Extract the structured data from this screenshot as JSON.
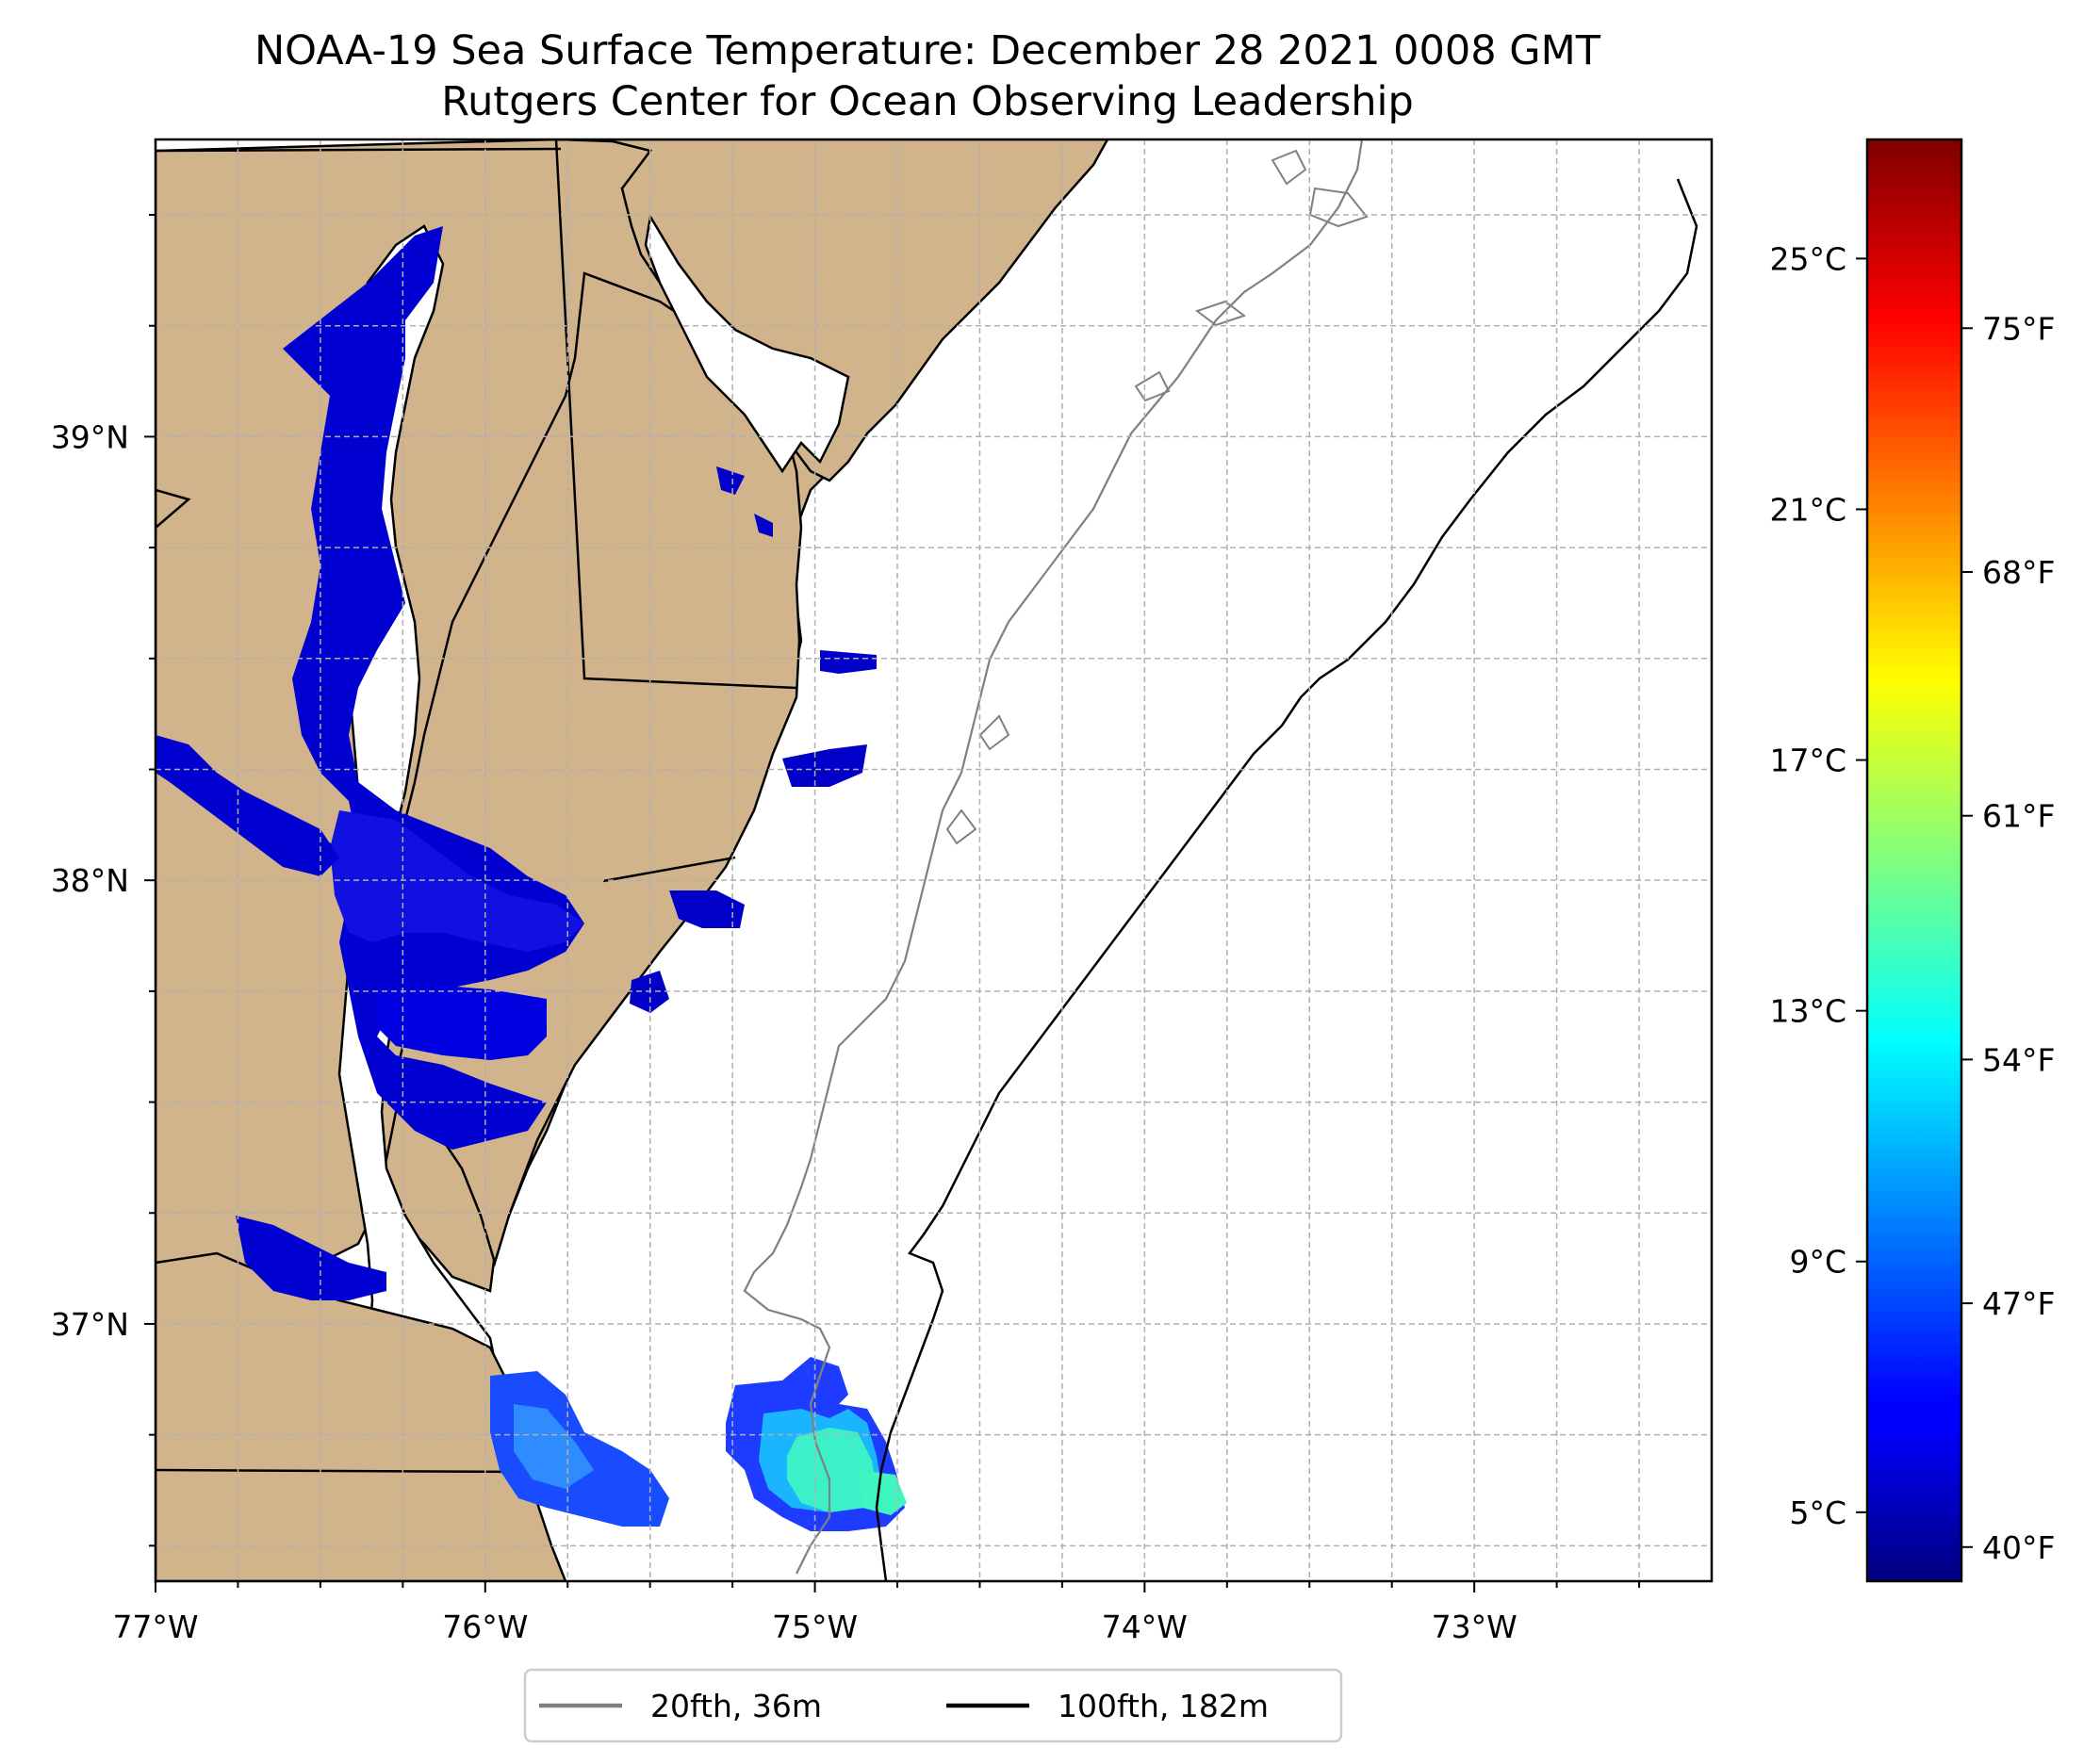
{
  "title": {
    "line1": "NOAA-19 Sea Surface Temperature: December 28 2021 0008 GMT",
    "line2": "Rutgers Center for Ocean Observing Leadership"
  },
  "map": {
    "lon_range": [
      -77.0,
      -72.28
    ],
    "lat_range": [
      36.42,
      39.67
    ],
    "lon_ticks": [
      {
        "value": -77,
        "label": "77°W"
      },
      {
        "value": -76,
        "label": "76°W"
      },
      {
        "value": -75,
        "label": "75°W"
      },
      {
        "value": -74,
        "label": "74°W"
      },
      {
        "value": -73,
        "label": "73°W"
      }
    ],
    "lat_ticks": [
      {
        "value": 37,
        "label": "37°N"
      },
      {
        "value": 38,
        "label": "38°N"
      },
      {
        "value": 39,
        "label": "39°N"
      }
    ],
    "gridlines": true,
    "land_color": "#d2b48c",
    "water_color": "#ffffff"
  },
  "colorbar": {
    "colormap": "jet",
    "range_c": [
      3.9,
      26.9
    ],
    "celsius_ticks": [
      {
        "value": 5,
        "label": "5°C"
      },
      {
        "value": 9,
        "label": "9°C"
      },
      {
        "value": 13,
        "label": "13°C"
      },
      {
        "value": 17,
        "label": "17°C"
      },
      {
        "value": 21,
        "label": "21°C"
      },
      {
        "value": 25,
        "label": "25°C"
      }
    ],
    "fahrenheit_ticks": [
      {
        "value": 40,
        "label": "40°F"
      },
      {
        "value": 47,
        "label": "47°F"
      },
      {
        "value": 54,
        "label": "54°F"
      },
      {
        "value": 61,
        "label": "61°F"
      },
      {
        "value": 68,
        "label": "68°F"
      },
      {
        "value": 75,
        "label": "75°F"
      }
    ]
  },
  "legend": {
    "placement": "bottom-center",
    "entries": [
      {
        "label": "20fth, 36m",
        "color": "#808080"
      },
      {
        "label": "100fth, 182m",
        "color": "#000000"
      }
    ]
  }
}
